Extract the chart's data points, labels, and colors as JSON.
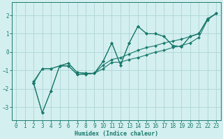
{
  "xlabel": "Humidex (Indice chaleur)",
  "ylabel": "",
  "xlim": [
    -0.5,
    23.5
  ],
  "ylim": [
    -3.7,
    2.7
  ],
  "xticks": [
    0,
    1,
    2,
    3,
    4,
    5,
    6,
    7,
    8,
    9,
    10,
    11,
    12,
    13,
    14,
    15,
    16,
    17,
    18,
    19,
    20,
    21,
    22,
    23
  ],
  "yticks": [
    -3,
    -2,
    -1,
    0,
    1,
    2
  ],
  "bg_color": "#d4efef",
  "grid_color": "#b2d8d8",
  "line_color": "#1a7a6e",
  "series": [
    {
      "x": [
        2,
        3,
        4,
        5,
        6,
        7,
        8,
        9,
        10,
        11,
        12,
        13,
        14,
        15,
        16,
        17,
        18,
        19,
        20,
        21,
        22,
        23
      ],
      "y": [
        -1.7,
        -3.3,
        -2.1,
        -0.75,
        -0.75,
        -1.2,
        -1.2,
        -1.15,
        -0.5,
        0.5,
        -0.7,
        0.5,
        1.4,
        1.0,
        1.0,
        0.85,
        0.35,
        0.3,
        0.85,
        1.0,
        1.8,
        2.1
      ]
    },
    {
      "x": [
        2,
        3,
        4,
        5,
        6,
        7,
        8,
        9,
        10,
        11,
        12,
        13,
        14,
        15,
        16,
        17,
        18,
        19,
        20,
        21,
        22,
        23
      ],
      "y": [
        -1.7,
        -0.9,
        -0.9,
        -0.75,
        -0.6,
        -1.1,
        -1.15,
        -1.15,
        -0.9,
        -0.55,
        -0.55,
        -0.4,
        -0.3,
        -0.15,
        0.0,
        0.1,
        0.25,
        0.35,
        0.5,
        0.8,
        1.75,
        2.1
      ]
    },
    {
      "x": [
        2,
        3,
        4,
        5,
        6,
        7,
        8,
        9,
        10,
        11,
        12,
        13,
        14,
        15,
        16,
        17,
        18,
        19,
        20,
        21,
        22,
        23
      ],
      "y": [
        -1.6,
        -0.9,
        -0.9,
        -0.75,
        -0.6,
        -1.1,
        -1.15,
        -1.15,
        -0.7,
        -0.4,
        -0.3,
        -0.1,
        0.1,
        0.25,
        0.35,
        0.5,
        0.6,
        0.7,
        0.85,
        1.0,
        1.8,
        2.1
      ]
    },
    {
      "x": [
        2,
        3,
        4,
        5,
        6,
        7,
        8,
        9,
        10,
        11,
        12,
        13,
        14,
        15,
        16,
        17,
        18,
        19,
        20,
        21,
        22,
        23
      ],
      "y": [
        -1.65,
        -3.3,
        -2.1,
        -0.75,
        -0.75,
        -1.2,
        -1.2,
        -1.15,
        -0.5,
        0.5,
        -0.7,
        0.5,
        1.4,
        1.0,
        1.0,
        0.85,
        0.35,
        0.3,
        0.85,
        1.0,
        1.8,
        2.1
      ]
    }
  ]
}
